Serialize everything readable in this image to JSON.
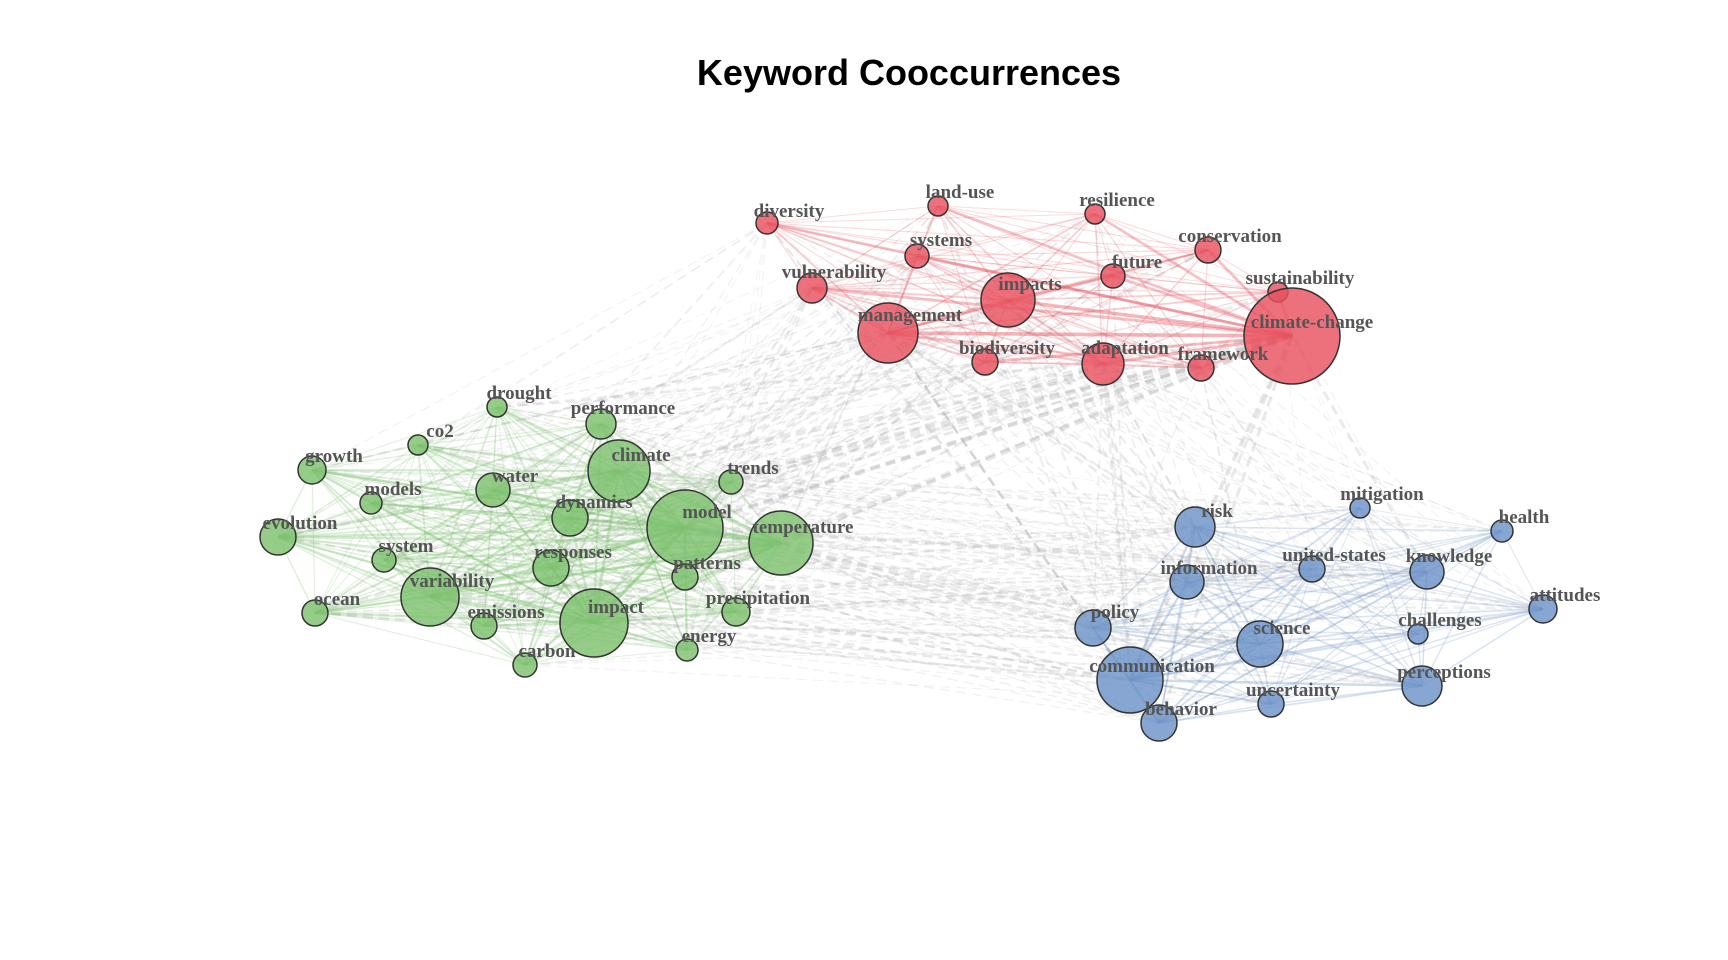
{
  "title": "Keyword Cooccurrences",
  "clusters": [
    {
      "id": "red",
      "color": "#e8525f"
    },
    {
      "id": "green",
      "color": "#7cc16e"
    },
    {
      "id": "blue",
      "color": "#6d93c8"
    }
  ],
  "nodes": [
    {
      "label": "diversity",
      "cluster": "red"
    },
    {
      "label": "land-use",
      "cluster": "red"
    },
    {
      "label": "resilience",
      "cluster": "red"
    },
    {
      "label": "systems",
      "cluster": "red"
    },
    {
      "label": "conservation",
      "cluster": "red"
    },
    {
      "label": "future",
      "cluster": "red"
    },
    {
      "label": "vulnerability",
      "cluster": "red"
    },
    {
      "label": "sustainability",
      "cluster": "red"
    },
    {
      "label": "impacts",
      "cluster": "red"
    },
    {
      "label": "management",
      "cluster": "red"
    },
    {
      "label": "climate-change",
      "cluster": "red"
    },
    {
      "label": "biodiversity",
      "cluster": "red"
    },
    {
      "label": "adaptation",
      "cluster": "red"
    },
    {
      "label": "framework",
      "cluster": "red"
    },
    {
      "label": "drought",
      "cluster": "green"
    },
    {
      "label": "performance",
      "cluster": "green"
    },
    {
      "label": "co2",
      "cluster": "green"
    },
    {
      "label": "growth",
      "cluster": "green"
    },
    {
      "label": "climate",
      "cluster": "green"
    },
    {
      "label": "water",
      "cluster": "green"
    },
    {
      "label": "trends",
      "cluster": "green"
    },
    {
      "label": "models",
      "cluster": "green"
    },
    {
      "label": "dynamics",
      "cluster": "green"
    },
    {
      "label": "model",
      "cluster": "green"
    },
    {
      "label": "evolution",
      "cluster": "green"
    },
    {
      "label": "temperature",
      "cluster": "green"
    },
    {
      "label": "system",
      "cluster": "green"
    },
    {
      "label": "responses",
      "cluster": "green"
    },
    {
      "label": "patterns",
      "cluster": "green"
    },
    {
      "label": "variability",
      "cluster": "green"
    },
    {
      "label": "ocean",
      "cluster": "green"
    },
    {
      "label": "precipitation",
      "cluster": "green"
    },
    {
      "label": "emissions",
      "cluster": "green"
    },
    {
      "label": "impact",
      "cluster": "green"
    },
    {
      "label": "energy",
      "cluster": "green"
    },
    {
      "label": "carbon",
      "cluster": "green"
    },
    {
      "label": "mitigation",
      "cluster": "blue"
    },
    {
      "label": "risk",
      "cluster": "blue"
    },
    {
      "label": "health",
      "cluster": "blue"
    },
    {
      "label": "information",
      "cluster": "blue"
    },
    {
      "label": "united-states",
      "cluster": "blue"
    },
    {
      "label": "knowledge",
      "cluster": "blue"
    },
    {
      "label": "attitudes",
      "cluster": "blue"
    },
    {
      "label": "policy",
      "cluster": "blue"
    },
    {
      "label": "challenges",
      "cluster": "blue"
    },
    {
      "label": "science",
      "cluster": "blue"
    },
    {
      "label": "communication",
      "cluster": "blue"
    },
    {
      "label": "perceptions",
      "cluster": "blue"
    },
    {
      "label": "uncertainty",
      "cluster": "blue"
    },
    {
      "label": "behavior",
      "cluster": "blue"
    }
  ]
}
